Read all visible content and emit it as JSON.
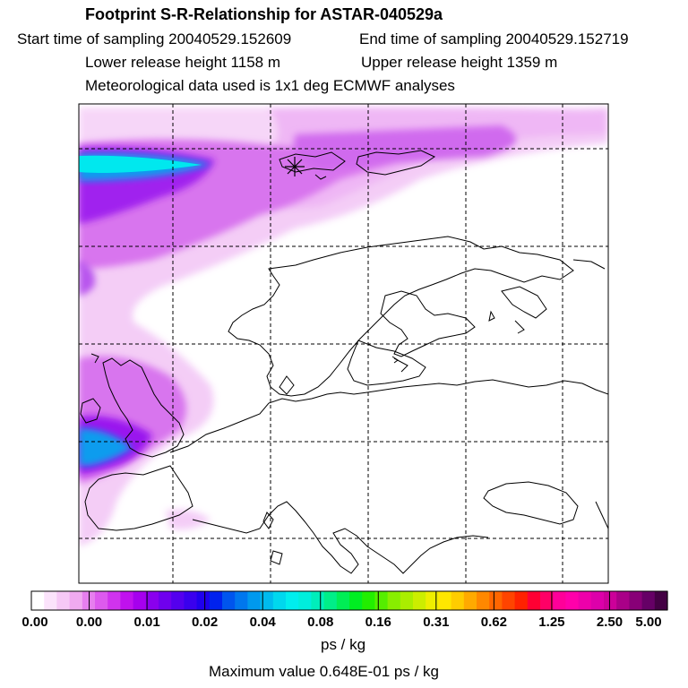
{
  "header": {
    "title": "Footprint S-R-Relationship for ASTAR-040529a",
    "start_time": "Start time of sampling 20040529.152609",
    "end_time": "End time of sampling 20040529.152719",
    "lower_height": "Lower release height 1158 m",
    "upper_height": "Upper release height 1359 m",
    "met_data": "Meteorological data used is 1x1 deg ECMWF analyses"
  },
  "colorbar": {
    "tick_labels": [
      "0.00",
      "0.00",
      "0.01",
      "0.02",
      "0.04",
      "0.08",
      "0.16",
      "0.31",
      "0.62",
      "1.25",
      "2.50",
      "5.00"
    ],
    "colors": [
      "#ffffff",
      "#fbe3fb",
      "#f6c8f6",
      "#f0aaf0",
      "#e67fee",
      "#dd5aee",
      "#d033ee",
      "#c011ee",
      "#a600ee",
      "#8a00ee",
      "#6f00ee",
      "#5400ee",
      "#3a00ee",
      "#1f00ee",
      "#0022ee",
      "#0055ee",
      "#0077ee",
      "#0099ee",
      "#00bbee",
      "#00d8ee",
      "#00eeee",
      "#00eedd",
      "#00eebb",
      "#00ee88",
      "#00ee55",
      "#00ee22",
      "#22ee00",
      "#55ee00",
      "#88ee00",
      "#aaee00",
      "#ccee00",
      "#eeee00",
      "#ffe600",
      "#ffcc00",
      "#ffaa00",
      "#ff8800",
      "#ff6600",
      "#ff4400",
      "#ff2200",
      "#ff0033",
      "#ff0066",
      "#ff0099",
      "#ff00aa",
      "#ee00aa",
      "#dd00aa",
      "#cc0099",
      "#aa0088",
      "#880077",
      "#660066",
      "#440044"
    ],
    "unit": "ps / kg"
  },
  "footer": {
    "max_value": "Maximum value  0.648E-01 ps / kg"
  }
}
